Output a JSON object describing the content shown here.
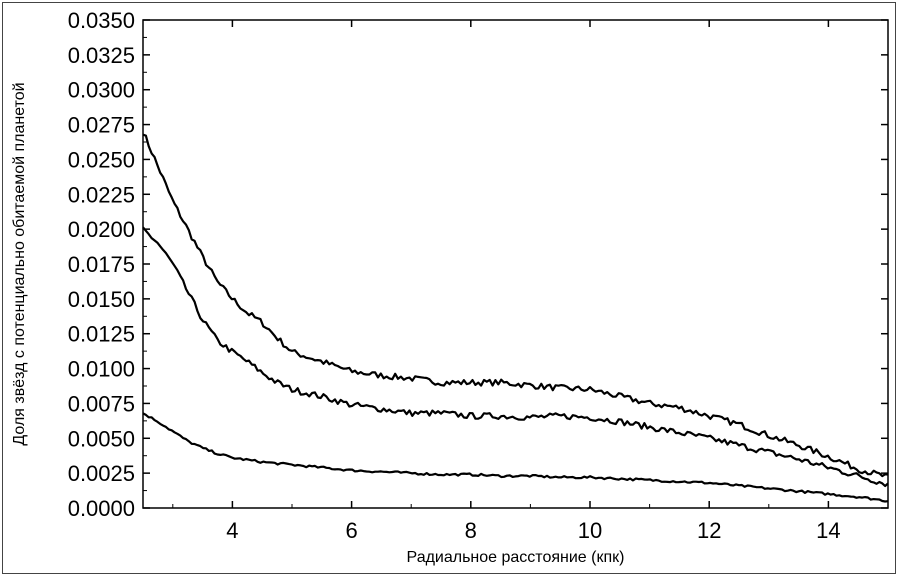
{
  "chart_data": {
    "type": "line",
    "title": "",
    "xlabel": "Радиальное расстояние (кпк)",
    "ylabel": "Доля звёзд с потенциально обитаемой планетой",
    "xlim": [
      2.5,
      15
    ],
    "ylim": [
      0,
      0.035
    ],
    "xticks": [
      4,
      6,
      8,
      10,
      12,
      14
    ],
    "yticks": [
      0.0,
      0.0025,
      0.005,
      0.0075,
      0.01,
      0.0125,
      0.015,
      0.0175,
      0.02,
      0.0225,
      0.025,
      0.0275,
      0.03,
      0.0325,
      0.035
    ],
    "ytick_labels": [
      "0.0000",
      "0.0025",
      "0.0050",
      "0.0075",
      "0.0100",
      "0.0125",
      "0.0150",
      "0.0175",
      "0.0200",
      "0.0225",
      "0.0250",
      "0.0275",
      "0.0300",
      "0.0325",
      "0.0350"
    ],
    "xtick_labels": [
      "4",
      "6",
      "8",
      "10",
      "12",
      "14"
    ],
    "grid": false,
    "legend": "none",
    "series": [
      {
        "x": [
          2.5,
          2.75,
          3.0,
          3.25,
          3.5,
          3.75,
          4.0,
          4.25,
          4.5,
          4.75,
          5.0,
          5.5,
          6.0,
          6.5,
          7.0,
          7.5,
          8.0,
          8.5,
          9.0,
          9.5,
          10.0,
          10.5,
          11.0,
          11.5,
          12.0,
          12.5,
          13.0,
          13.5,
          14.0,
          14.5,
          15.0
        ],
        "values": [
          0.027,
          0.0245,
          0.022,
          0.02,
          0.018,
          0.0162,
          0.015,
          0.014,
          0.0133,
          0.0122,
          0.0112,
          0.0105,
          0.0098,
          0.0095,
          0.0093,
          0.009,
          0.009,
          0.009,
          0.0088,
          0.0086,
          0.0085,
          0.008,
          0.0075,
          0.0072,
          0.0066,
          0.006,
          0.0052,
          0.0045,
          0.0037,
          0.0028,
          0.0022
        ]
      },
      {
        "x": [
          2.5,
          2.75,
          3.0,
          3.25,
          3.5,
          3.75,
          4.0,
          4.25,
          4.5,
          4.75,
          5.0,
          5.5,
          6.0,
          6.5,
          7.0,
          7.5,
          8.0,
          8.5,
          9.0,
          9.5,
          10.0,
          10.5,
          11.0,
          11.5,
          12.0,
          12.5,
          13.0,
          13.5,
          14.0,
          14.5,
          15.0
        ],
        "values": [
          0.02,
          0.019,
          0.0175,
          0.0155,
          0.0135,
          0.012,
          0.0112,
          0.0105,
          0.0097,
          0.009,
          0.0085,
          0.008,
          0.0074,
          0.0071,
          0.0068,
          0.0068,
          0.0066,
          0.0066,
          0.0065,
          0.0066,
          0.0065,
          0.0062,
          0.0058,
          0.0054,
          0.005,
          0.0045,
          0.004,
          0.0035,
          0.0029,
          0.0023,
          0.0017
        ]
      },
      {
        "x": [
          2.5,
          2.75,
          3.0,
          3.25,
          3.5,
          3.75,
          4.0,
          4.5,
          5.0,
          5.5,
          6.0,
          6.5,
          7.0,
          7.5,
          8.0,
          8.5,
          9.0,
          9.5,
          10.0,
          10.5,
          11.0,
          11.5,
          12.0,
          12.5,
          13.0,
          13.5,
          14.0,
          14.5,
          15.0
        ],
        "values": [
          0.0068,
          0.0062,
          0.0055,
          0.0048,
          0.0043,
          0.0039,
          0.0036,
          0.0033,
          0.0031,
          0.0029,
          0.0027,
          0.0026,
          0.0025,
          0.0024,
          0.0024,
          0.0023,
          0.0023,
          0.0022,
          0.0022,
          0.0021,
          0.002,
          0.0019,
          0.0018,
          0.0016,
          0.0014,
          0.0012,
          0.001,
          0.0008,
          0.0005
        ]
      }
    ]
  }
}
